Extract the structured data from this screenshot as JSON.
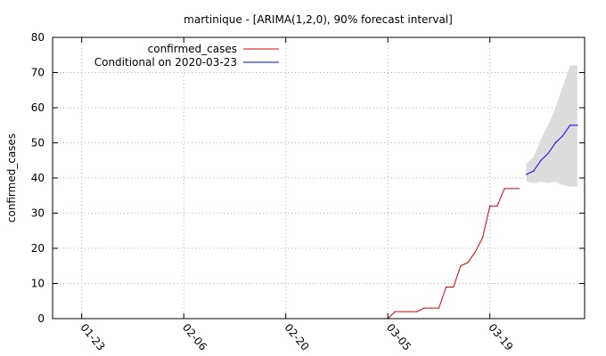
{
  "chart_data": {
    "type": "line",
    "title": "martinique -  [ARIMA(1,2,0), 90% forecast interval]",
    "ylabel": "confirmed_cases",
    "xlabel": "",
    "ylim": [
      0,
      80
    ],
    "xlim": [
      "2020-01-19",
      "2020-04-01"
    ],
    "grid": true,
    "legend_position": "top-left",
    "x_ticks": [
      "2020-01-23",
      "2020-02-06",
      "2020-02-20",
      "2020-03-05",
      "2020-03-19"
    ],
    "x_tick_labels": [
      "01-23",
      "02-06",
      "02-20",
      "03-05",
      "03-19"
    ],
    "y_ticks": [
      0,
      10,
      20,
      30,
      40,
      50,
      60,
      70,
      80
    ],
    "series": [
      {
        "name": "confirmed_cases",
        "color": "#e00000",
        "x": [
          "2020-03-05",
          "2020-03-06",
          "2020-03-07",
          "2020-03-08",
          "2020-03-09",
          "2020-03-10",
          "2020-03-11",
          "2020-03-12",
          "2020-03-13",
          "2020-03-14",
          "2020-03-15",
          "2020-03-16",
          "2020-03-17",
          "2020-03-18",
          "2020-03-19",
          "2020-03-20",
          "2020-03-21",
          "2020-03-22",
          "2020-03-23"
        ],
        "values": [
          0,
          2,
          2,
          2,
          2,
          3,
          3,
          3,
          9,
          9,
          15,
          16,
          19,
          23,
          32,
          32,
          37,
          37,
          37
        ]
      },
      {
        "name": "Conditional on 2020-03-23",
        "color": "#0000ee",
        "x": [
          "2020-03-24",
          "2020-03-25",
          "2020-03-26",
          "2020-03-27",
          "2020-03-28",
          "2020-03-29",
          "2020-03-30",
          "2020-03-31"
        ],
        "values": [
          41,
          42,
          45,
          47,
          50,
          52,
          55,
          55
        ],
        "lower": [
          39,
          38.5,
          39,
          38.5,
          39,
          38,
          37.5,
          37.5
        ],
        "upper": [
          44,
          46,
          51,
          55,
          60,
          66,
          72,
          72
        ]
      }
    ]
  },
  "colors": {
    "band": "#dcdcdc",
    "grid": "#b0b0b0",
    "axis": "#000000"
  }
}
